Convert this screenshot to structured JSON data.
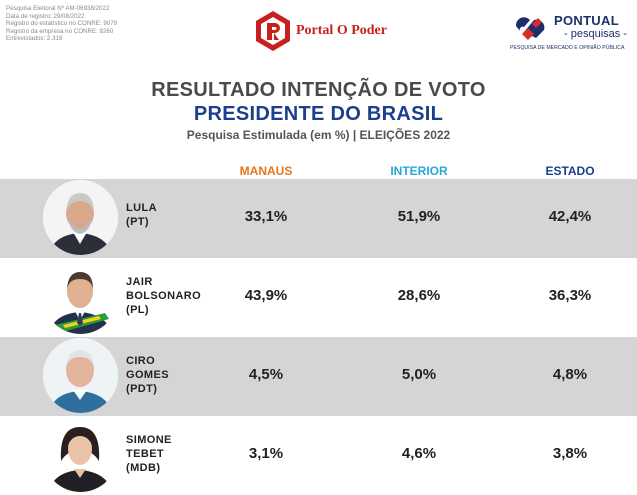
{
  "meta_lines": [
    "Pesquisa Eleitoral Nº AM-06938/2022",
    "Data de registro: 29/08/2022",
    "Registro do estatístico no CONRE: 9079",
    "Registro da empresa no CONRE: 8260",
    "Entrevistados: 2.318"
  ],
  "brand_center": {
    "name": "Portal O Poder",
    "color": "#c8201e"
  },
  "brand_right": {
    "name": "PONTUAL",
    "sub": "- pesquisas -",
    "tagline": "PESQUISA DE MERCADO E OPINIÃO PÚBLICA",
    "color": "#1c2f6b"
  },
  "title_line1": "RESULTADO INTENÇÃO DE VOTO",
  "title_line2": "PRESIDENTE DO BRASIL",
  "subtitle": "Pesquisa Estimulada (em %) | ELEIÇÕES 2022",
  "columns": [
    {
      "label": "MANAUS",
      "color": "#e8761e"
    },
    {
      "label": "INTERIOR",
      "color": "#27a8d9"
    },
    {
      "label": "ESTADO",
      "color": "#1b3f8c"
    }
  ],
  "candidates": [
    {
      "name_lines": [
        "LULA",
        "(PT)"
      ],
      "values": [
        "33,1%",
        "51,9%",
        "42,4%"
      ],
      "photo": "lula-photo"
    },
    {
      "name_lines": [
        "JAIR",
        "BOLSONARO",
        "(PL)"
      ],
      "values": [
        "43,9%",
        "28,6%",
        "36,3%"
      ],
      "photo": "bolsonaro-photo"
    },
    {
      "name_lines": [
        "CIRO",
        "GOMES",
        "(PDT)"
      ],
      "values": [
        "4,5%",
        "5,0%",
        "4,8%"
      ],
      "photo": "ciro-photo"
    },
    {
      "name_lines": [
        "SIMONE",
        "TEBET",
        "(MDB)"
      ],
      "values": [
        "3,1%",
        "4,6%",
        "3,8%"
      ],
      "photo": "simone-photo"
    }
  ]
}
